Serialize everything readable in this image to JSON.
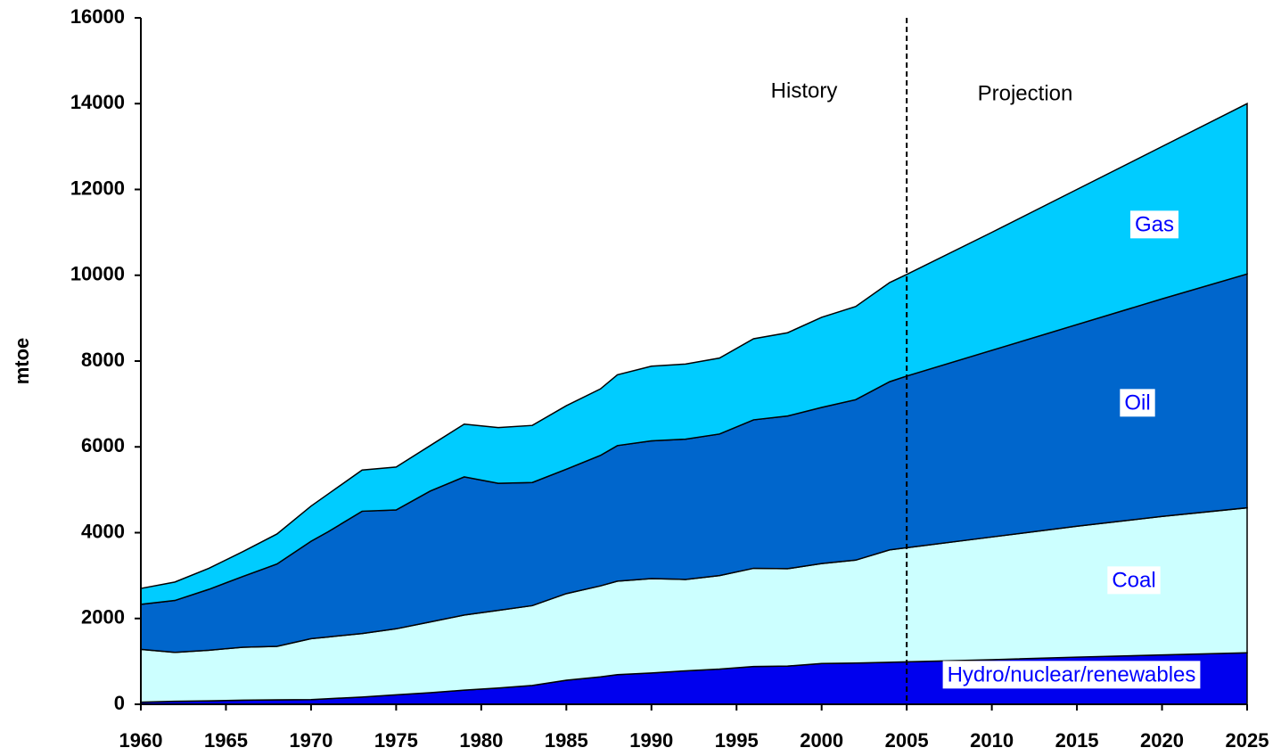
{
  "chart_data": {
    "type": "stacked_area",
    "y_label": "mtoe",
    "x": [
      1960,
      1962,
      1964,
      1966,
      1968,
      1970,
      1971,
      1973,
      1975,
      1977,
      1979,
      1981,
      1983,
      1985,
      1987,
      1988,
      1990,
      1992,
      1994,
      1996,
      1998,
      2000,
      2002,
      2004,
      2005,
      2010,
      2015,
      2020,
      2025
    ],
    "series": [
      {
        "name": "Hydro/nuclear/renewables",
        "color": "#0000ee",
        "values": [
          50,
          70,
          80,
          95,
          105,
          110,
          130,
          170,
          220,
          270,
          330,
          380,
          440,
          560,
          640,
          690,
          730,
          780,
          820,
          880,
          890,
          950,
          960,
          980,
          990,
          1040,
          1100,
          1150,
          1200
        ]
      },
      {
        "name": "Coal",
        "color": "#ccffff",
        "values": [
          1230,
          1140,
          1180,
          1235,
          1245,
          1420,
          1440,
          1480,
          1540,
          1650,
          1750,
          1810,
          1860,
          2020,
          2120,
          2180,
          2200,
          2130,
          2180,
          2290,
          2270,
          2330,
          2400,
          2620,
          2660,
          2860,
          3050,
          3230,
          3380
        ]
      },
      {
        "name": "Oil",
        "color": "#0066cc",
        "values": [
          1050,
          1210,
          1420,
          1650,
          1920,
          2270,
          2450,
          2850,
          2770,
          3050,
          3220,
          2960,
          2870,
          2900,
          3040,
          3160,
          3210,
          3270,
          3300,
          3460,
          3560,
          3640,
          3740,
          3920,
          4000,
          4350,
          4700,
          5070,
          5450
        ]
      },
      {
        "name": "Gas",
        "color": "#00ccff",
        "values": [
          370,
          430,
          490,
          580,
          700,
          820,
          880,
          960,
          1000,
          1060,
          1230,
          1300,
          1330,
          1480,
          1550,
          1650,
          1740,
          1750,
          1770,
          1890,
          1940,
          2100,
          2170,
          2310,
          2370,
          2750,
          3150,
          3550,
          3970
        ]
      }
    ],
    "annotations": [
      {
        "text": "History"
      },
      {
        "text": "Projection"
      }
    ],
    "divider_x": 2005,
    "label_color": "#0000ff",
    "xlim": [
      1960,
      2025
    ],
    "xticks": [
      1960,
      1965,
      1970,
      1975,
      1980,
      1985,
      1990,
      1995,
      2000,
      2005,
      2010,
      2015,
      2020,
      2025
    ],
    "ylim": [
      0,
      16000
    ],
    "yticks": [
      0,
      2000,
      4000,
      6000,
      8000,
      10000,
      12000,
      14000,
      16000
    ]
  }
}
